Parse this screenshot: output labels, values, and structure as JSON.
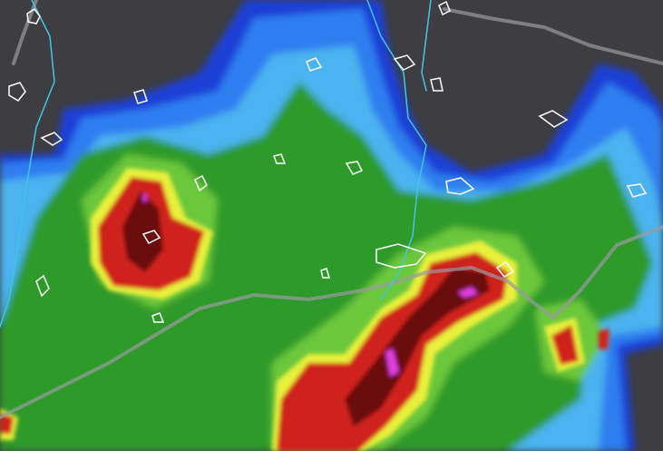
{
  "map": {
    "colors": {
      "background": "#3d3d42",
      "precip_blue_dark": "#1f3fd6",
      "precip_blue": "#2f7ef0",
      "precip_light_blue": "#4cb3ef",
      "precip_green": "#2f9a2a",
      "precip_light_green": "#6cc83a",
      "precip_yellow": "#e8f03a",
      "precip_red": "#d0201a",
      "precip_dark_red": "#6a0c0c",
      "precip_magenta": "#e040e0",
      "road": "#9a9aa0",
      "river": "#3fc6e6",
      "town_outline": "#ffffff"
    }
  }
}
